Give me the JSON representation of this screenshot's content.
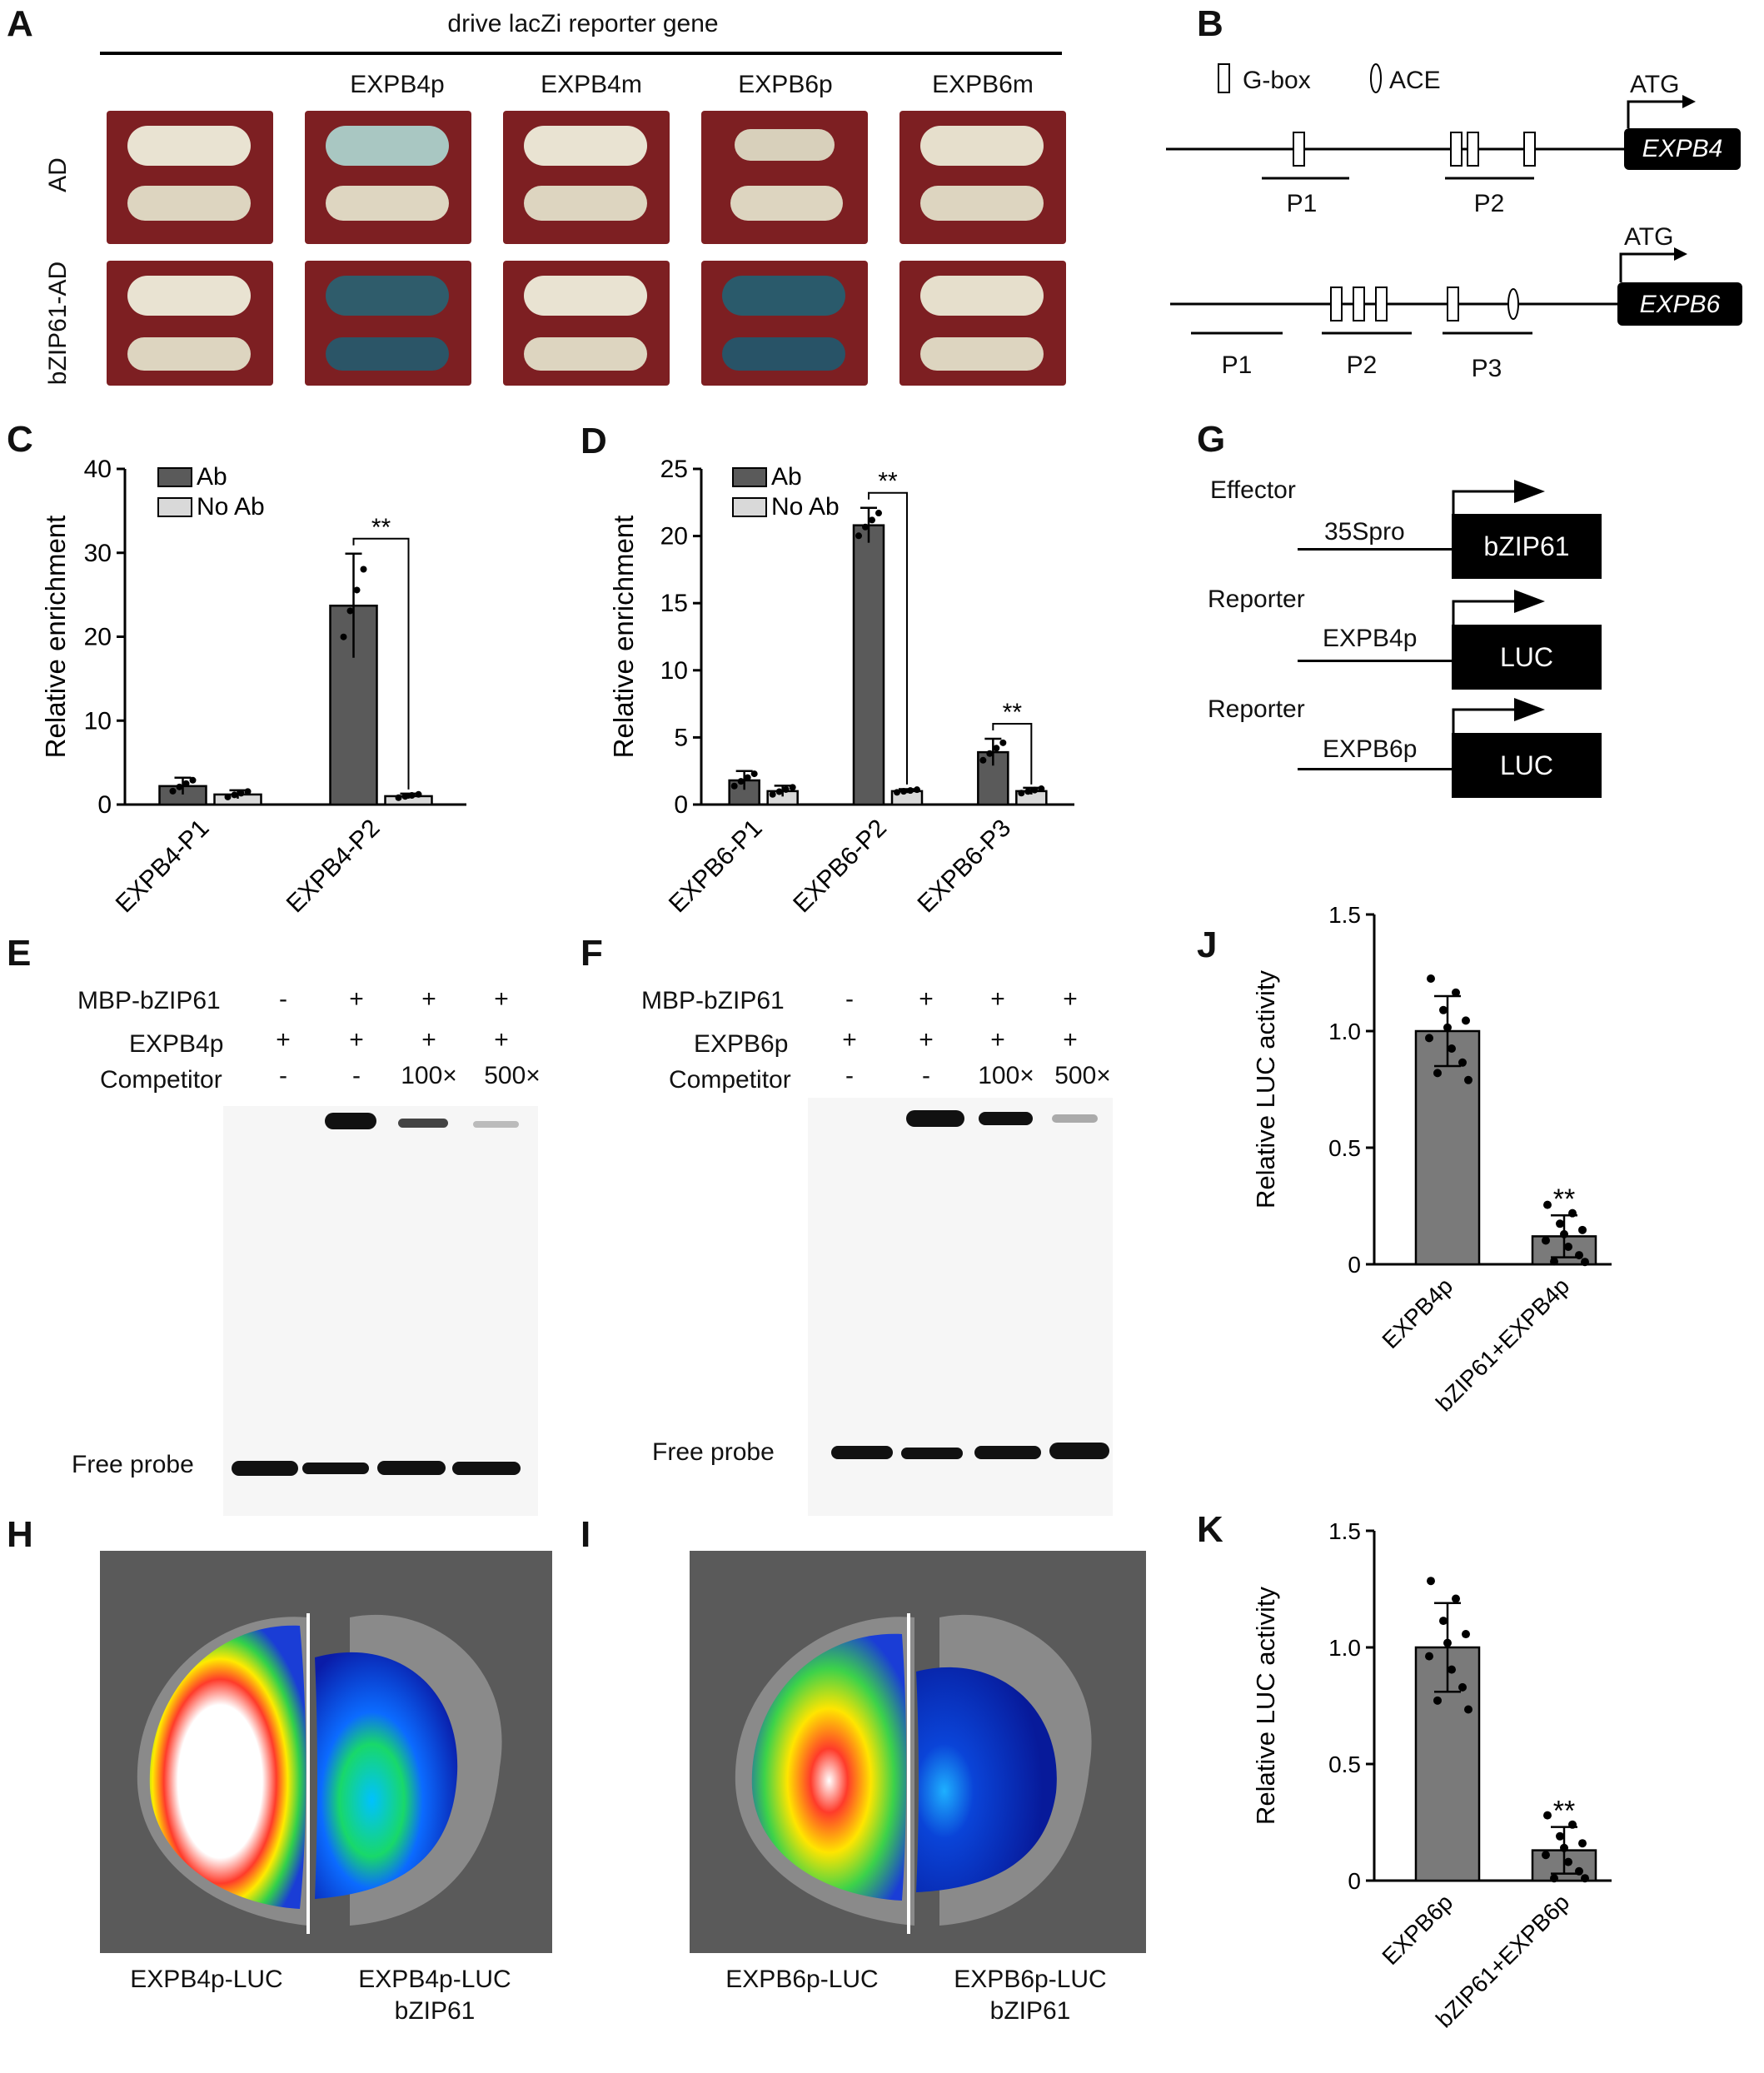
{
  "panel_labels": {
    "A": "A",
    "B": "B",
    "C": "C",
    "D": "D",
    "E": "E",
    "F": "F",
    "G": "G",
    "H": "H",
    "I": "I",
    "J": "J",
    "K": "K"
  },
  "panelA": {
    "header": "drive lacZi reporter gene",
    "columns": [
      "EXPB4p",
      "EXPB4m",
      "EXPB6p",
      "EXPB6m"
    ],
    "rows": [
      "AD",
      "bZIP61-AD"
    ]
  },
  "panelB": {
    "legend_gbox": "G-box",
    "legend_ace": "ACE",
    "atg": "ATG",
    "gene1": "EXPB4",
    "gene1_regions": [
      "P1",
      "P2"
    ],
    "gene2": "EXPB6",
    "gene2_regions": [
      "P1",
      "P2",
      "P3"
    ]
  },
  "panelG": {
    "effector": "Effector",
    "reporter1": "Reporter",
    "reporter2": "Reporter",
    "promoter_eff": "35Spro",
    "promoter_r1": "EXPB4p",
    "promoter_r2": "EXPB6p",
    "box_eff": "bZIP61",
    "box_r1": "LUC",
    "box_r2": "LUC"
  },
  "panelE": {
    "row_labels": [
      "MBP-bZIP61",
      "EXPB4p",
      "Competitor"
    ],
    "lanes": [
      [
        "-",
        "+",
        "-"
      ],
      [
        "+",
        "+",
        "-"
      ],
      [
        "+",
        "+",
        "100×"
      ],
      [
        "+",
        "+",
        "500×"
      ]
    ],
    "free_probe": "Free probe"
  },
  "panelF": {
    "row_labels": [
      "MBP-bZIP61",
      "EXPB6p",
      "Competitor"
    ],
    "lanes": [
      [
        "-",
        "+",
        "-"
      ],
      [
        "+",
        "+",
        "-"
      ],
      [
        "+",
        "+",
        "100×"
      ],
      [
        "+",
        "+",
        "500×"
      ]
    ],
    "free_probe": "Free probe"
  },
  "panelH": {
    "left": "EXPB4p-LUC",
    "right1": "EXPB4p-LUC",
    "right2": "bZIP61"
  },
  "panelI": {
    "left": "EXPB6p-LUC",
    "right1": "EXPB6p-LUC",
    "right2": "bZIP61"
  },
  "chart_data": [
    {
      "id": "C",
      "type": "bar",
      "ylabel": "Relative enrichment",
      "ylim": [
        0,
        40
      ],
      "yticks": [
        0,
        10,
        20,
        30,
        40
      ],
      "categories": [
        "EXPB4-P1",
        "EXPB4-P2"
      ],
      "series": [
        {
          "name": "Ab",
          "values": [
            2.2,
            23.7
          ],
          "errors": [
            1.0,
            6.2
          ],
          "color": "#5a5a5a"
        },
        {
          "name": "No Ab",
          "values": [
            1.2,
            1.0
          ],
          "errors": [
            0.5,
            0.3
          ],
          "color": "#d9d9d9"
        }
      ],
      "significance": [
        {
          "category": "EXPB4-P2",
          "text": "**"
        }
      ],
      "legend_position": "top-left"
    },
    {
      "id": "D",
      "type": "bar",
      "ylabel": "Relative enrichment",
      "ylim": [
        0,
        25
      ],
      "yticks": [
        0,
        5,
        10,
        15,
        20,
        25
      ],
      "categories": [
        "EXPB6-P1",
        "EXPB6-P2",
        "EXPB6-P3"
      ],
      "series": [
        {
          "name": "Ab",
          "values": [
            1.8,
            20.8,
            3.9
          ],
          "errors": [
            0.7,
            1.3,
            1.0
          ],
          "color": "#5a5a5a"
        },
        {
          "name": "No Ab",
          "values": [
            1.0,
            1.0,
            1.0
          ],
          "errors": [
            0.4,
            0.15,
            0.25
          ],
          "color": "#d9d9d9"
        }
      ],
      "significance": [
        {
          "category": "EXPB6-P2",
          "text": "**"
        },
        {
          "category": "EXPB6-P3",
          "text": "**"
        }
      ],
      "legend_position": "top-left"
    },
    {
      "id": "J",
      "type": "bar",
      "ylabel": "Relative LUC activity",
      "ylim": [
        0,
        1.5
      ],
      "yticks": [
        0,
        0.5,
        1.0,
        1.5
      ],
      "categories": [
        "EXPB4p",
        "bZIP61+EXPB4p"
      ],
      "values": [
        1.0,
        0.12
      ],
      "errors": [
        0.15,
        0.09
      ],
      "significance": [
        {
          "category": "bZIP61+EXPB4p",
          "text": "**"
        }
      ],
      "color": "#7a7a7a"
    },
    {
      "id": "K",
      "type": "bar",
      "ylabel": "Relative LUC activity",
      "ylim": [
        0,
        1.5
      ],
      "yticks": [
        0,
        0.5,
        1.0,
        1.5
      ],
      "categories": [
        "EXPB6p",
        "bZIP61+EXPB6p"
      ],
      "values": [
        1.0,
        0.13
      ],
      "errors": [
        0.19,
        0.1
      ],
      "significance": [
        {
          "category": "bZIP61+EXPB6p",
          "text": "**"
        }
      ],
      "color": "#7a7a7a"
    }
  ]
}
